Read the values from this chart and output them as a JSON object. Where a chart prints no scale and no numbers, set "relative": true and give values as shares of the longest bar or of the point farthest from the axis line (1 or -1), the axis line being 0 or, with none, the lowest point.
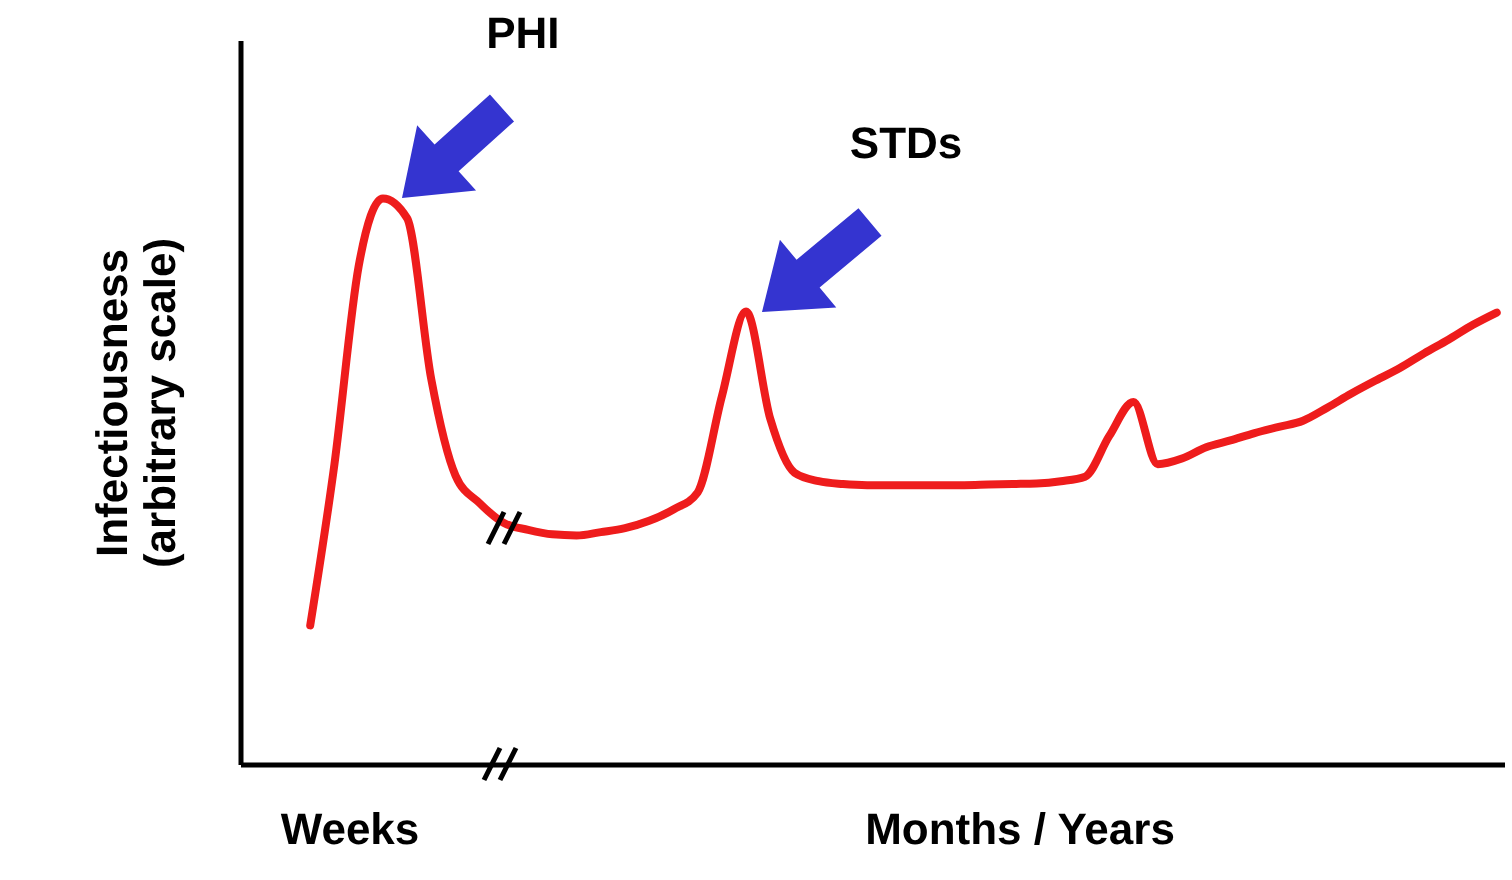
{
  "chart_data": {
    "type": "line",
    "relative": true,
    "ylabel": "Infectiousness (arbitrary scale)",
    "annotations": [
      "PHI",
      "STDs",
      "Weeks",
      "Months / Years"
    ],
    "categories": [
      null,
      null,
      null,
      null,
      null,
      null,
      null,
      null,
      null,
      null,
      null,
      null,
      null,
      null,
      null,
      null,
      null,
      null,
      null,
      null,
      null,
      null,
      null,
      null,
      null,
      null,
      null,
      null,
      null,
      null,
      null,
      null,
      null,
      null,
      null,
      null,
      null,
      null,
      null,
      null,
      null,
      null,
      null,
      null,
      null,
      null,
      null,
      null,
      null,
      null
    ],
    "color": "#ee1c1c",
    "values": [
      0.245,
      0.53,
      0.88,
      1,
      0.965,
      0.68,
      0.51,
      0.461,
      0.426,
      0.414,
      0.406,
      0.404,
      0.41,
      0.417,
      0.43,
      0.45,
      0.48,
      0.65,
      0.8,
      0.61,
      0.515,
      0.5,
      0.495,
      0.493,
      0.493,
      0.493,
      0.493,
      0.493,
      0.494,
      0.495,
      0.496,
      0.5,
      0.508,
      0.58,
      0.64,
      0.53,
      0.54,
      0.56,
      0.572,
      0.585,
      0.596,
      0.607,
      0.63,
      0.655,
      0.678,
      0.7,
      0.726,
      0.75,
      0.776,
      0.798
    ]
  }
}
